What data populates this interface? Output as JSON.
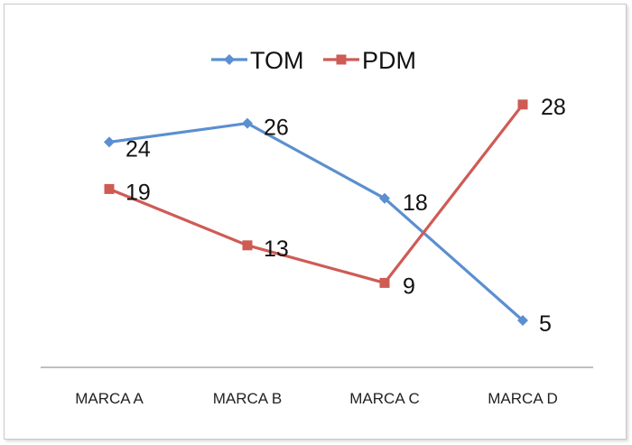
{
  "chart_data": {
    "type": "line",
    "title": "",
    "xlabel": "",
    "ylabel": "",
    "categories": [
      "MARCA A",
      "MARCA B",
      "MARCA C",
      "MARCA D"
    ],
    "ylim": [
      0,
      30
    ],
    "grid": false,
    "legend_position": "top",
    "series": [
      {
        "name": "TOM",
        "values": [
          24,
          26,
          18,
          5
        ],
        "color": "#5b8fd0",
        "marker": "diamond"
      },
      {
        "name": "PDM",
        "values": [
          19,
          13,
          9,
          28
        ],
        "color": "#cf5b55",
        "marker": "square"
      }
    ]
  }
}
